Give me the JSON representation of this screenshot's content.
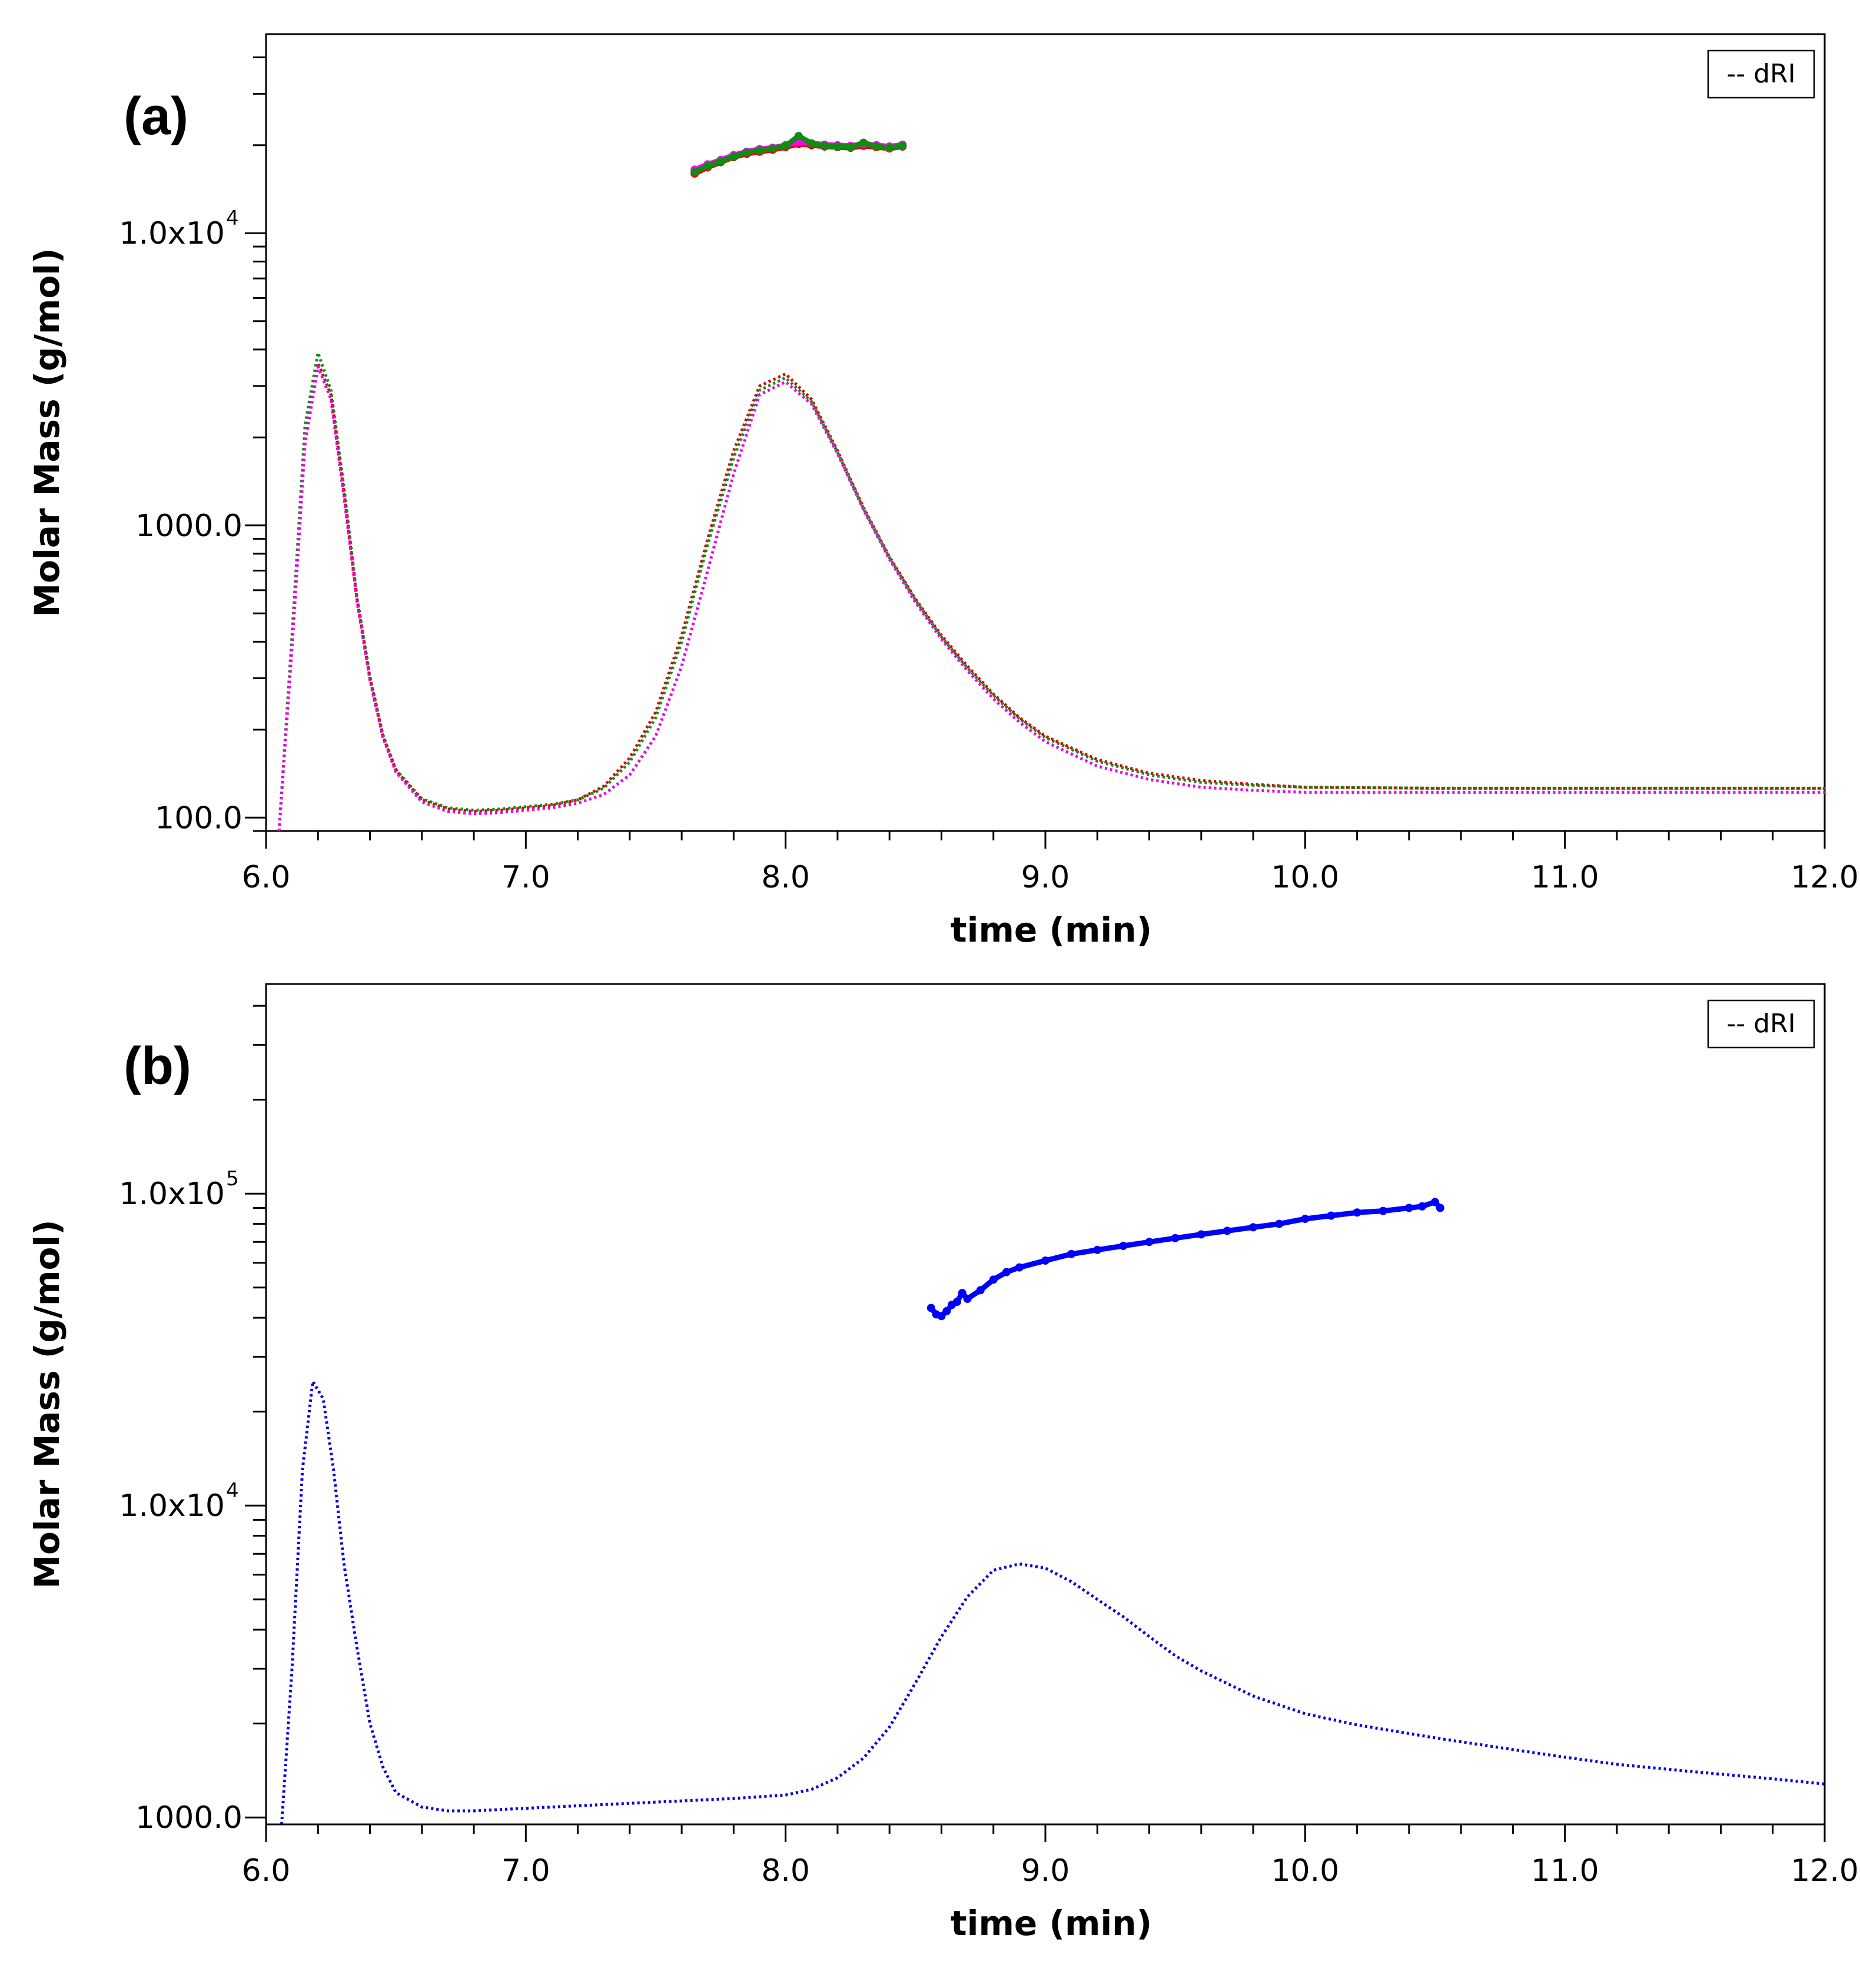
{
  "chart_data": [
    {
      "type": "line",
      "panel_label": "(a)",
      "xlabel": "time (min)",
      "ylabel": "Molar Mass (g/mol)",
      "y_scale": "log",
      "xlim": [
        6.0,
        12.0
      ],
      "ylim": [
        90,
        48000
      ],
      "x_ticks": [
        "6.0",
        "7.0",
        "8.0",
        "9.0",
        "10.0",
        "11.0",
        "12.0"
      ],
      "y_ticks": [
        {
          "value": 100,
          "mantissa": "100.0",
          "exponent": ""
        },
        {
          "value": 1000,
          "mantissa": "1000.0",
          "exponent": ""
        },
        {
          "value": 10000,
          "mantissa": "1.0x10",
          "exponent": "4"
        }
      ],
      "legend": {
        "label": "-- dRI",
        "placement": "top-right"
      },
      "series": [
        {
          "name": "dRI red",
          "color": "#d90000",
          "style": "dotted",
          "x": [
            6.05,
            6.1,
            6.15,
            6.2,
            6.25,
            6.3,
            6.35,
            6.4,
            6.45,
            6.5,
            6.6,
            6.7,
            6.8,
            6.9,
            7.0,
            7.1,
            7.2,
            7.3,
            7.4,
            7.5,
            7.6,
            7.7,
            7.8,
            7.9,
            8.0,
            8.1,
            8.2,
            8.3,
            8.4,
            8.5,
            8.6,
            8.7,
            8.8,
            8.9,
            9.0,
            9.2,
            9.4,
            9.6,
            9.8,
            10.0,
            10.5,
            11.0,
            11.5,
            12.0
          ],
          "y": [
            90,
            400,
            2000,
            3600,
            2800,
            1300,
            560,
            300,
            190,
            145,
            115,
            107,
            105,
            106,
            108,
            110,
            115,
            128,
            160,
            230,
            420,
            900,
            1800,
            3000,
            3300,
            2700,
            1800,
            1150,
            780,
            560,
            420,
            330,
            265,
            220,
            190,
            158,
            142,
            134,
            130,
            127,
            126,
            126,
            126,
            126
          ]
        },
        {
          "name": "dRI green",
          "color": "#138a13",
          "style": "dotted",
          "x": [
            6.05,
            6.1,
            6.15,
            6.2,
            6.25,
            6.3,
            6.35,
            6.4,
            6.45,
            6.5,
            6.6,
            6.7,
            6.8,
            6.9,
            7.0,
            7.1,
            7.2,
            7.3,
            7.4,
            7.5,
            7.6,
            7.7,
            7.8,
            7.9,
            8.0,
            8.1,
            8.2,
            8.3,
            8.4,
            8.5,
            8.6,
            8.7,
            8.8,
            8.9,
            9.0,
            9.2,
            9.4,
            9.6,
            9.8,
            10.0,
            10.5,
            11.0,
            11.5,
            12.0
          ],
          "y": [
            90,
            420,
            2200,
            3900,
            2900,
            1350,
            570,
            305,
            192,
            146,
            116,
            108,
            106,
            107,
            109,
            111,
            115,
            126,
            155,
            220,
            400,
            860,
            1700,
            2900,
            3200,
            2650,
            1780,
            1140,
            775,
            555,
            415,
            325,
            262,
            218,
            188,
            156,
            140,
            132,
            129,
            127,
            126,
            126,
            126,
            126
          ]
        },
        {
          "name": "dRI magenta",
          "color": "#e600e6",
          "style": "dotted",
          "x": [
            6.05,
            6.1,
            6.15,
            6.2,
            6.25,
            6.3,
            6.35,
            6.4,
            6.45,
            6.5,
            6.6,
            6.7,
            6.8,
            6.9,
            7.0,
            7.1,
            7.2,
            7.3,
            7.4,
            7.5,
            7.6,
            7.7,
            7.8,
            7.9,
            8.0,
            8.1,
            8.2,
            8.3,
            8.4,
            8.5,
            8.6,
            8.7,
            8.8,
            8.9,
            9.0,
            9.2,
            9.4,
            9.6,
            9.8,
            10.0,
            10.5,
            11.0,
            11.5,
            12.0
          ],
          "y": [
            90,
            380,
            1900,
            3500,
            2700,
            1250,
            550,
            295,
            188,
            143,
            113,
            105,
            103,
            104,
            106,
            108,
            112,
            120,
            140,
            190,
            330,
            700,
            1500,
            2800,
            3100,
            2600,
            1760,
            1130,
            765,
            545,
            408,
            318,
            255,
            212,
            182,
            150,
            135,
            127,
            124,
            122,
            122,
            122,
            122,
            122
          ]
        },
        {
          "name": "Molar mass red",
          "color": "#e60000",
          "style": "markers",
          "x": [
            7.65,
            7.7,
            7.75,
            7.8,
            7.85,
            7.9,
            7.95,
            8.0,
            8.05,
            8.1,
            8.15,
            8.2,
            8.25,
            8.3,
            8.35,
            8.4,
            8.45
          ],
          "y": [
            16000,
            16800,
            17500,
            18200,
            18700,
            19000,
            19300,
            19700,
            20200,
            20000,
            19800,
            19700,
            19600,
            19900,
            19700,
            19500,
            19800
          ]
        },
        {
          "name": "Molar mass magenta",
          "color": "#ff00ff",
          "style": "markers",
          "x": [
            7.65,
            7.7,
            7.75,
            7.8,
            7.85,
            7.9,
            7.95,
            8.0,
            8.05,
            8.1,
            8.15,
            8.2,
            8.25,
            8.3,
            8.35,
            8.4,
            8.45
          ],
          "y": [
            16500,
            17200,
            17800,
            18500,
            19000,
            19400,
            19600,
            20000,
            20600,
            20300,
            20100,
            20000,
            19900,
            20200,
            20000,
            19800,
            20100
          ]
        },
        {
          "name": "Molar mass green",
          "color": "#138a13",
          "style": "markers",
          "x": [
            7.65,
            7.7,
            7.75,
            7.8,
            7.85,
            7.9,
            7.95,
            8.0,
            8.05,
            8.1,
            8.15,
            8.2,
            8.25,
            8.3,
            8.35,
            8.4,
            8.45
          ],
          "y": [
            16200,
            17000,
            17600,
            18300,
            18900,
            19200,
            19500,
            19900,
            21500,
            20300,
            19900,
            19800,
            19700,
            20400,
            19800,
            19600,
            19900
          ]
        }
      ]
    },
    {
      "type": "line",
      "panel_label": "(b)",
      "xlabel": "time (min)",
      "ylabel": "Molar Mass (g/mol)",
      "y_scale": "log",
      "xlim": [
        6.0,
        12.0
      ],
      "ylim": [
        950,
        470000
      ],
      "x_ticks": [
        "6.0",
        "7.0",
        "8.0",
        "9.0",
        "10.0",
        "11.0",
        "12.0"
      ],
      "y_ticks": [
        {
          "value": 1000,
          "mantissa": "1000.0",
          "exponent": ""
        },
        {
          "value": 10000,
          "mantissa": "1.0x10",
          "exponent": "4"
        },
        {
          "value": 100000,
          "mantissa": "1.0x10",
          "exponent": "5"
        }
      ],
      "legend": {
        "label": "-- dRI",
        "placement": "top-right"
      },
      "series": [
        {
          "name": "dRI blue",
          "color": "#0000e0",
          "style": "dotted",
          "x": [
            6.06,
            6.1,
            6.14,
            6.18,
            6.22,
            6.26,
            6.3,
            6.35,
            6.4,
            6.45,
            6.5,
            6.6,
            6.7,
            6.8,
            7.0,
            7.2,
            7.4,
            7.6,
            7.8,
            8.0,
            8.1,
            8.2,
            8.3,
            8.4,
            8.5,
            8.6,
            8.7,
            8.8,
            8.9,
            9.0,
            9.1,
            9.2,
            9.3,
            9.4,
            9.5,
            9.6,
            9.8,
            10.0,
            10.2,
            10.5,
            10.8,
            11.0,
            11.2,
            11.5,
            11.8,
            12.0
          ],
          "y": [
            950,
            3000,
            13000,
            25000,
            22000,
            13000,
            6500,
            3500,
            2000,
            1450,
            1200,
            1080,
            1050,
            1050,
            1070,
            1090,
            1110,
            1130,
            1150,
            1180,
            1230,
            1340,
            1550,
            1950,
            2700,
            3800,
            5100,
            6200,
            6500,
            6300,
            5700,
            5000,
            4400,
            3800,
            3300,
            2950,
            2450,
            2150,
            1980,
            1800,
            1650,
            1560,
            1480,
            1400,
            1330,
            1280
          ]
        },
        {
          "name": "Molar mass blue",
          "color": "#0000ff",
          "style": "markers",
          "x": [
            8.56,
            8.58,
            8.6,
            8.62,
            8.64,
            8.66,
            8.68,
            8.7,
            8.75,
            8.8,
            8.85,
            8.9,
            9.0,
            9.1,
            9.2,
            9.3,
            9.4,
            9.5,
            9.6,
            9.7,
            9.8,
            9.9,
            10.0,
            10.1,
            10.2,
            10.3,
            10.4,
            10.45,
            10.5,
            10.52
          ],
          "y": [
            43000,
            41000,
            40500,
            42000,
            44000,
            45000,
            48000,
            46000,
            49000,
            53000,
            56000,
            58000,
            61000,
            64000,
            66000,
            68000,
            70000,
            72000,
            74000,
            76000,
            78000,
            80000,
            83000,
            85000,
            87000,
            88000,
            90000,
            91000,
            94000,
            90000
          ]
        }
      ]
    }
  ]
}
